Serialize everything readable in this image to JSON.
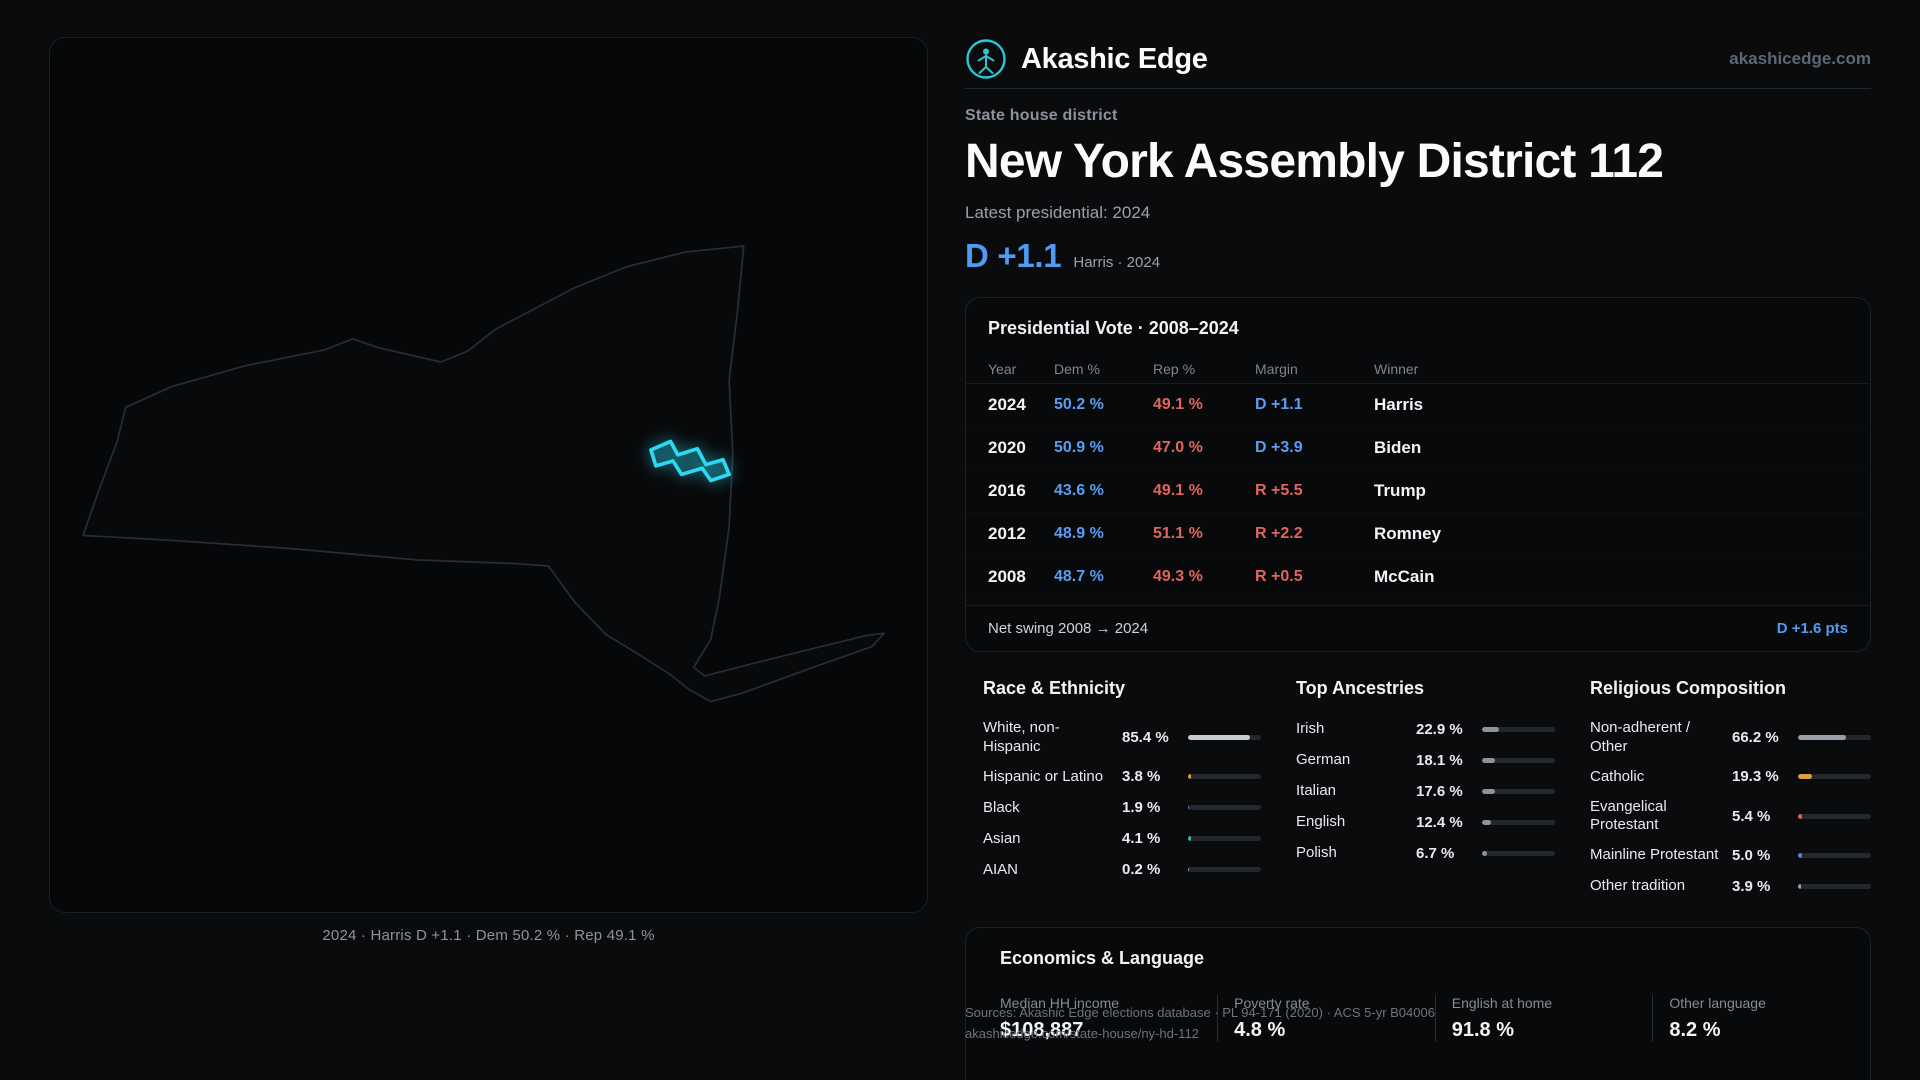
{
  "theme": {
    "dem_blue": "#5a9df2",
    "rep_red": "#e0655f",
    "accent_cyan": "#2bd9f2"
  },
  "header": {
    "brand": "Akashic Edge",
    "domain": "akashicedge.com",
    "logo_icon": "vitruvian-figure-in-circle"
  },
  "hero": {
    "kicker": "State house district",
    "title": "New York Assembly District 112",
    "subtitle": "Latest presidential: 2024",
    "lead_value": "D +1.1",
    "lead_caption": "Harris · 2024"
  },
  "map": {
    "caption": "2024 · Harris D +1.1 · Dem 50.2 % · Rep 49.1 %",
    "highlight_color": "#2bd9f2"
  },
  "presidential": {
    "title": "Presidential Vote · 2008–2024",
    "columns": {
      "year": "Year",
      "dem": "Dem %",
      "rep": "Rep %",
      "margin": "Margin",
      "winner": "Winner"
    },
    "rows": [
      {
        "year": "2024",
        "dem": "50.2 %",
        "rep": "49.1 %",
        "margin": "D +1.1",
        "margin_party": "D",
        "winner": "Harris"
      },
      {
        "year": "2020",
        "dem": "50.9 %",
        "rep": "47.0 %",
        "margin": "D +3.9",
        "margin_party": "D",
        "winner": "Biden"
      },
      {
        "year": "2016",
        "dem": "43.6 %",
        "rep": "49.1 %",
        "margin": "R +5.5",
        "margin_party": "R",
        "winner": "Trump"
      },
      {
        "year": "2012",
        "dem": "48.9 %",
        "rep": "51.1 %",
        "margin": "R +2.2",
        "margin_party": "R",
        "winner": "Romney"
      },
      {
        "year": "2008",
        "dem": "48.7 %",
        "rep": "49.3 %",
        "margin": "R +0.5",
        "margin_party": "R",
        "winner": "McCain"
      }
    ],
    "net_swing_label": "Net swing 2008 → 2024",
    "net_swing_value": "D +1.6 pts"
  },
  "race": {
    "title": "Race & Ethnicity",
    "rows": [
      {
        "label": "White, non-Hispanic",
        "value": "85.4 %",
        "pct": 85.4,
        "color": "#c7ccd3"
      },
      {
        "label": "Hispanic or Latino",
        "value": "3.8 %",
        "pct": 3.8,
        "color": "#e39a35"
      },
      {
        "label": "Black",
        "value": "1.9 %",
        "pct": 1.9,
        "color": "#5b6ee0"
      },
      {
        "label": "Asian",
        "value": "4.1 %",
        "pct": 4.1,
        "color": "#2fbf9a"
      },
      {
        "label": "AIAN",
        "value": "0.2 %",
        "pct": 0.2,
        "color": "#8f959d"
      }
    ]
  },
  "ancestries": {
    "title": "Top Ancestries",
    "rows": [
      {
        "label": "Irish",
        "value": "22.9 %",
        "pct": 22.9,
        "color": "#8d939b"
      },
      {
        "label": "German",
        "value": "18.1 %",
        "pct": 18.1,
        "color": "#8d939b"
      },
      {
        "label": "Italian",
        "value": "17.6 %",
        "pct": 17.6,
        "color": "#8d939b"
      },
      {
        "label": "English",
        "value": "12.4 %",
        "pct": 12.4,
        "color": "#8d939b"
      },
      {
        "label": "Polish",
        "value": "6.7 %",
        "pct": 6.7,
        "color": "#8d939b"
      }
    ]
  },
  "religion": {
    "title": "Religious Composition",
    "rows": [
      {
        "label": "Non-adherent / Other",
        "value": "66.2 %",
        "pct": 66.2,
        "color": "#9aa0a8"
      },
      {
        "label": "Catholic",
        "value": "19.3 %",
        "pct": 19.3,
        "color": "#d9a33c"
      },
      {
        "label": "Evangelical Protestant",
        "value": "5.4 %",
        "pct": 5.4,
        "color": "#d8605c"
      },
      {
        "label": "Mainline Protestant",
        "value": "5.0 %",
        "pct": 5.0,
        "color": "#5d7ce0"
      },
      {
        "label": "Other tradition",
        "value": "3.9 %",
        "pct": 3.9,
        "color": "#9aa0a8"
      }
    ]
  },
  "economics": {
    "title": "Economics & Language",
    "stats": [
      {
        "label": "Median HH income",
        "value": "$108,887"
      },
      {
        "label": "Poverty rate",
        "value": "4.8 %"
      },
      {
        "label": "English at home",
        "value": "91.8 %"
      },
      {
        "label": "Other language",
        "value": "8.2 %"
      }
    ]
  },
  "footer": {
    "line1": "Sources: Akashic Edge elections database · PL 94-171 (2020) · ACS 5-yr B04006",
    "line2": "akashicedge.com/state-house/ny-hd-112"
  }
}
